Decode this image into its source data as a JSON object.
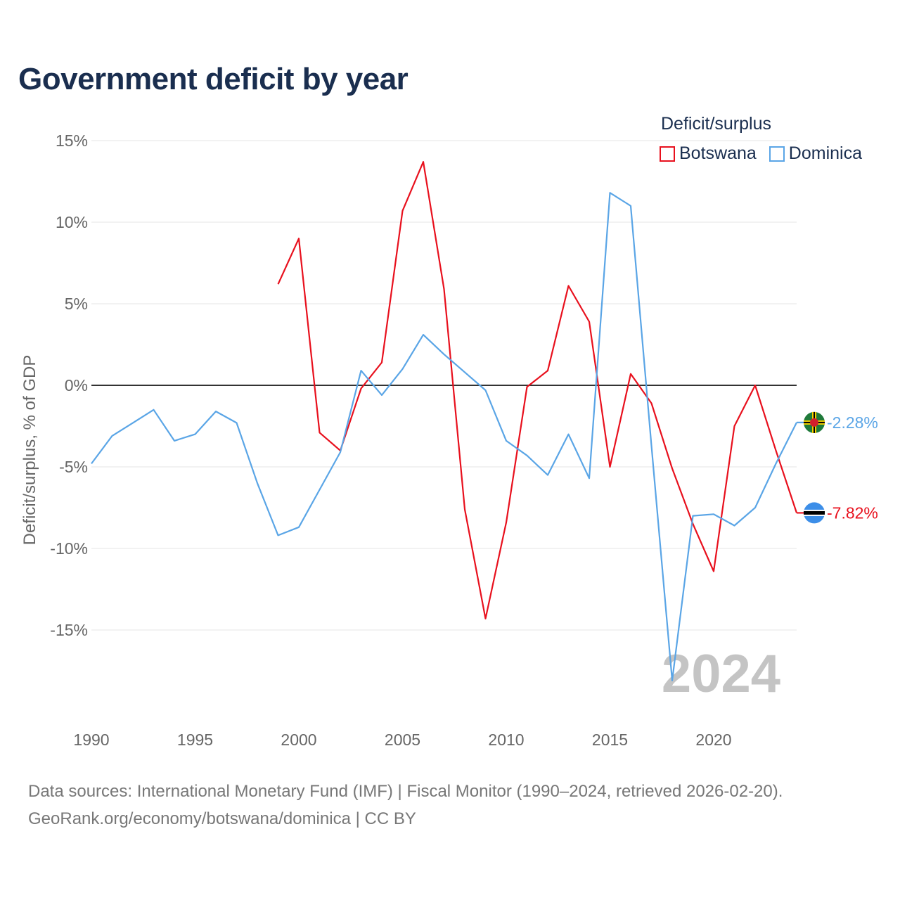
{
  "chart_data": {
    "type": "line",
    "title": "Government deficit by year",
    "xlabel": "",
    "ylabel": "Deficit/surplus, % of GDP",
    "xlim": [
      1990,
      2024
    ],
    "ylim": [
      -20,
      15
    ],
    "x_ticks": [
      1990,
      1995,
      2000,
      2005,
      2010,
      2015,
      2020
    ],
    "x_tick_labels": [
      "1990",
      "1995",
      "2000",
      "2005",
      "2010",
      "2015",
      "2020"
    ],
    "y_ticks": [
      15,
      10,
      5,
      0,
      -5,
      -10,
      -15
    ],
    "y_tick_labels": [
      "15%",
      "10%",
      "5%",
      "0%",
      "-5%",
      "-10%",
      "-15%"
    ],
    "year_label": "2024",
    "legend_title": "Deficit/surplus",
    "legend_position": "top-right",
    "series": [
      {
        "name": "Botswana",
        "color": "#e8101d",
        "x": [
          1999,
          2000,
          2001,
          2002,
          2003,
          2004,
          2005,
          2006,
          2007,
          2008,
          2009,
          2010,
          2011,
          2012,
          2013,
          2014,
          2015,
          2016,
          2017,
          2018,
          2019,
          2020,
          2021,
          2022,
          2023,
          2024
        ],
        "values": [
          6.2,
          9.0,
          -2.9,
          -4.0,
          -0.2,
          1.4,
          10.7,
          13.7,
          5.9,
          -7.6,
          -14.3,
          -8.4,
          -0.1,
          0.9,
          6.1,
          3.9,
          -5.0,
          0.7,
          -1.1,
          -5.1,
          -8.5,
          -11.4,
          -2.5,
          0.0,
          -4.0,
          -7.82
        ],
        "end_label": "-7.82%",
        "flag_icon": "botswana-flag-icon"
      },
      {
        "name": "Dominica",
        "color": "#5aa5e6",
        "x": [
          1990,
          1991,
          1992,
          1993,
          1994,
          1995,
          1996,
          1997,
          1998,
          1999,
          2000,
          2001,
          2002,
          2003,
          2004,
          2005,
          2006,
          2007,
          2008,
          2009,
          2010,
          2011,
          2012,
          2013,
          2014,
          2015,
          2016,
          2017,
          2018,
          2019,
          2020,
          2021,
          2022,
          2023,
          2024
        ],
        "values": [
          -4.8,
          -3.1,
          -2.3,
          -1.5,
          -3.4,
          -3.0,
          -1.6,
          -2.3,
          -6.0,
          -9.2,
          -8.7,
          -6.4,
          -4.1,
          0.9,
          -0.6,
          1.0,
          3.1,
          1.9,
          0.8,
          -0.3,
          -3.4,
          -4.3,
          -5.5,
          -3.0,
          -5.7,
          11.8,
          11.0,
          -3.7,
          -18.1,
          -8.0,
          -7.9,
          -8.6,
          -7.5,
          -4.8,
          -2.28
        ],
        "end_label": "-2.28%",
        "flag_icon": "dominica-flag-icon"
      }
    ]
  },
  "source_line": "Data sources: International Monetary Fund (IMF) | Fiscal Monitor (1990–2024, retrieved 2026-02-20).",
  "credit_line": "GeoRank.org/economy/botswana/dominica | CC BY"
}
